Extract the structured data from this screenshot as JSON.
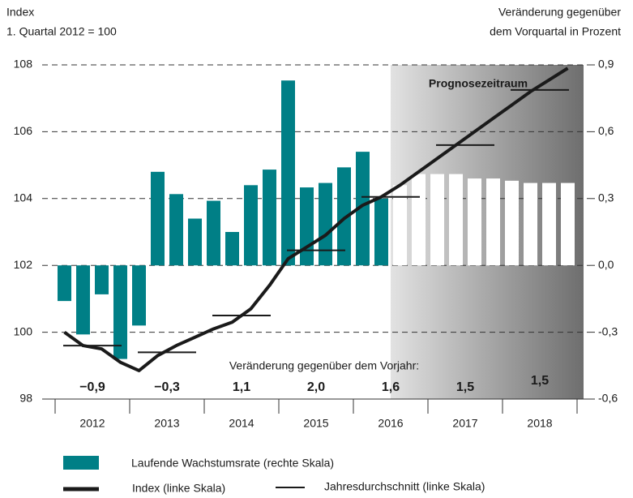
{
  "chart_data": {
    "type": "combo",
    "left_axis_title": [
      "Index",
      "1. Quartal 2012 = 100"
    ],
    "right_axis_title": [
      "Veränderung gegenüber",
      "dem Vorquartal in Prozent"
    ],
    "categories": [
      "2012",
      "2013",
      "2014",
      "2015",
      "2016",
      "2017",
      "2018"
    ],
    "ylim": [
      98,
      108
    ],
    "yticks": [
      98,
      100,
      102,
      104,
      106,
      108
    ],
    "y2lim": [
      -0.6,
      0.9
    ],
    "y2ticks": [
      {
        "value": -0.6,
        "label": "-0,6"
      },
      {
        "value": -0.3,
        "label": "-0,3"
      },
      {
        "value": 0,
        "label": "0,0"
      },
      {
        "value": 0.3,
        "label": "0,3"
      },
      {
        "value": 0.6,
        "label": "0,6"
      },
      {
        "value": 0.9,
        "label": "0,9"
      }
    ],
    "grid": true,
    "series": [
      {
        "name": "Laufende Wachstumsrate (rechte Skala)",
        "type": "bar",
        "axis": "y2",
        "color": "#007f86",
        "values": [
          [
            -0.16,
            -0.31,
            -0.13,
            -0.42
          ],
          [
            -0.27,
            0.42,
            0.32,
            0.21
          ],
          [
            0.29,
            0.15,
            0.36,
            0.43
          ],
          [
            0.83,
            0.35,
            0.37,
            0.44
          ],
          [
            0.51,
            0.3,
            0.36,
            0.41
          ],
          [
            0.41,
            0.41,
            0.39,
            0.39
          ],
          [
            0.38,
            0.37,
            0.37,
            0.37
          ]
        ],
        "colors": [
          [
            "#007f86",
            "#007f86",
            "#007f86",
            "#007f86"
          ],
          [
            "#007f86",
            "#007f86",
            "#007f86",
            "#007f86"
          ],
          [
            "#007f86",
            "#007f86",
            "#007f86",
            "#007f86"
          ],
          [
            "#007f86",
            "#007f86",
            "#007f86",
            "#007f86"
          ],
          [
            "#007f86",
            "#007f86",
            "#ffffff",
            "#ffffff"
          ],
          [
            "#ffffff",
            "#ffffff",
            "#ffffff",
            "#ffffff"
          ],
          [
            "#ffffff",
            "#ffffff",
            "#ffffff",
            "#ffffff"
          ]
        ]
      },
      {
        "name": "Index (linke Skala)",
        "type": "line",
        "color": "#1a1a1a",
        "values": [
          [
            100.0,
            99.6,
            99.5,
            99.1
          ],
          [
            98.85,
            99.3,
            99.6,
            99.85
          ],
          [
            100.1,
            100.3,
            100.7,
            101.4
          ],
          [
            102.2,
            102.55,
            102.9,
            103.4
          ],
          [
            103.8,
            104.05,
            104.4,
            104.8
          ],
          [
            105.2,
            105.6,
            106.0,
            106.4
          ],
          [
            106.8,
            107.2,
            107.55,
            107.9
          ]
        ]
      },
      {
        "name": "Jahresdurchschnitt (linke Skala)",
        "type": "annual",
        "color": "#1a1a1a",
        "values": [
          99.6,
          99.4,
          100.5,
          102.45,
          104.05,
          105.6,
          107.25
        ]
      }
    ],
    "forecast": {
      "label": "Prognosezeitraum"
    },
    "annual_change": {
      "label": "Veränderung gegenüber dem Vorjahr:",
      "values": [
        -0.9,
        -0.3,
        1.1,
        2.0,
        1.6,
        1.5,
        1.5
      ],
      "value_labels": [
        "−0,9",
        "−0,3",
        "1,1",
        "2,0",
        "1,6",
        "1,5",
        "1,5"
      ]
    }
  }
}
